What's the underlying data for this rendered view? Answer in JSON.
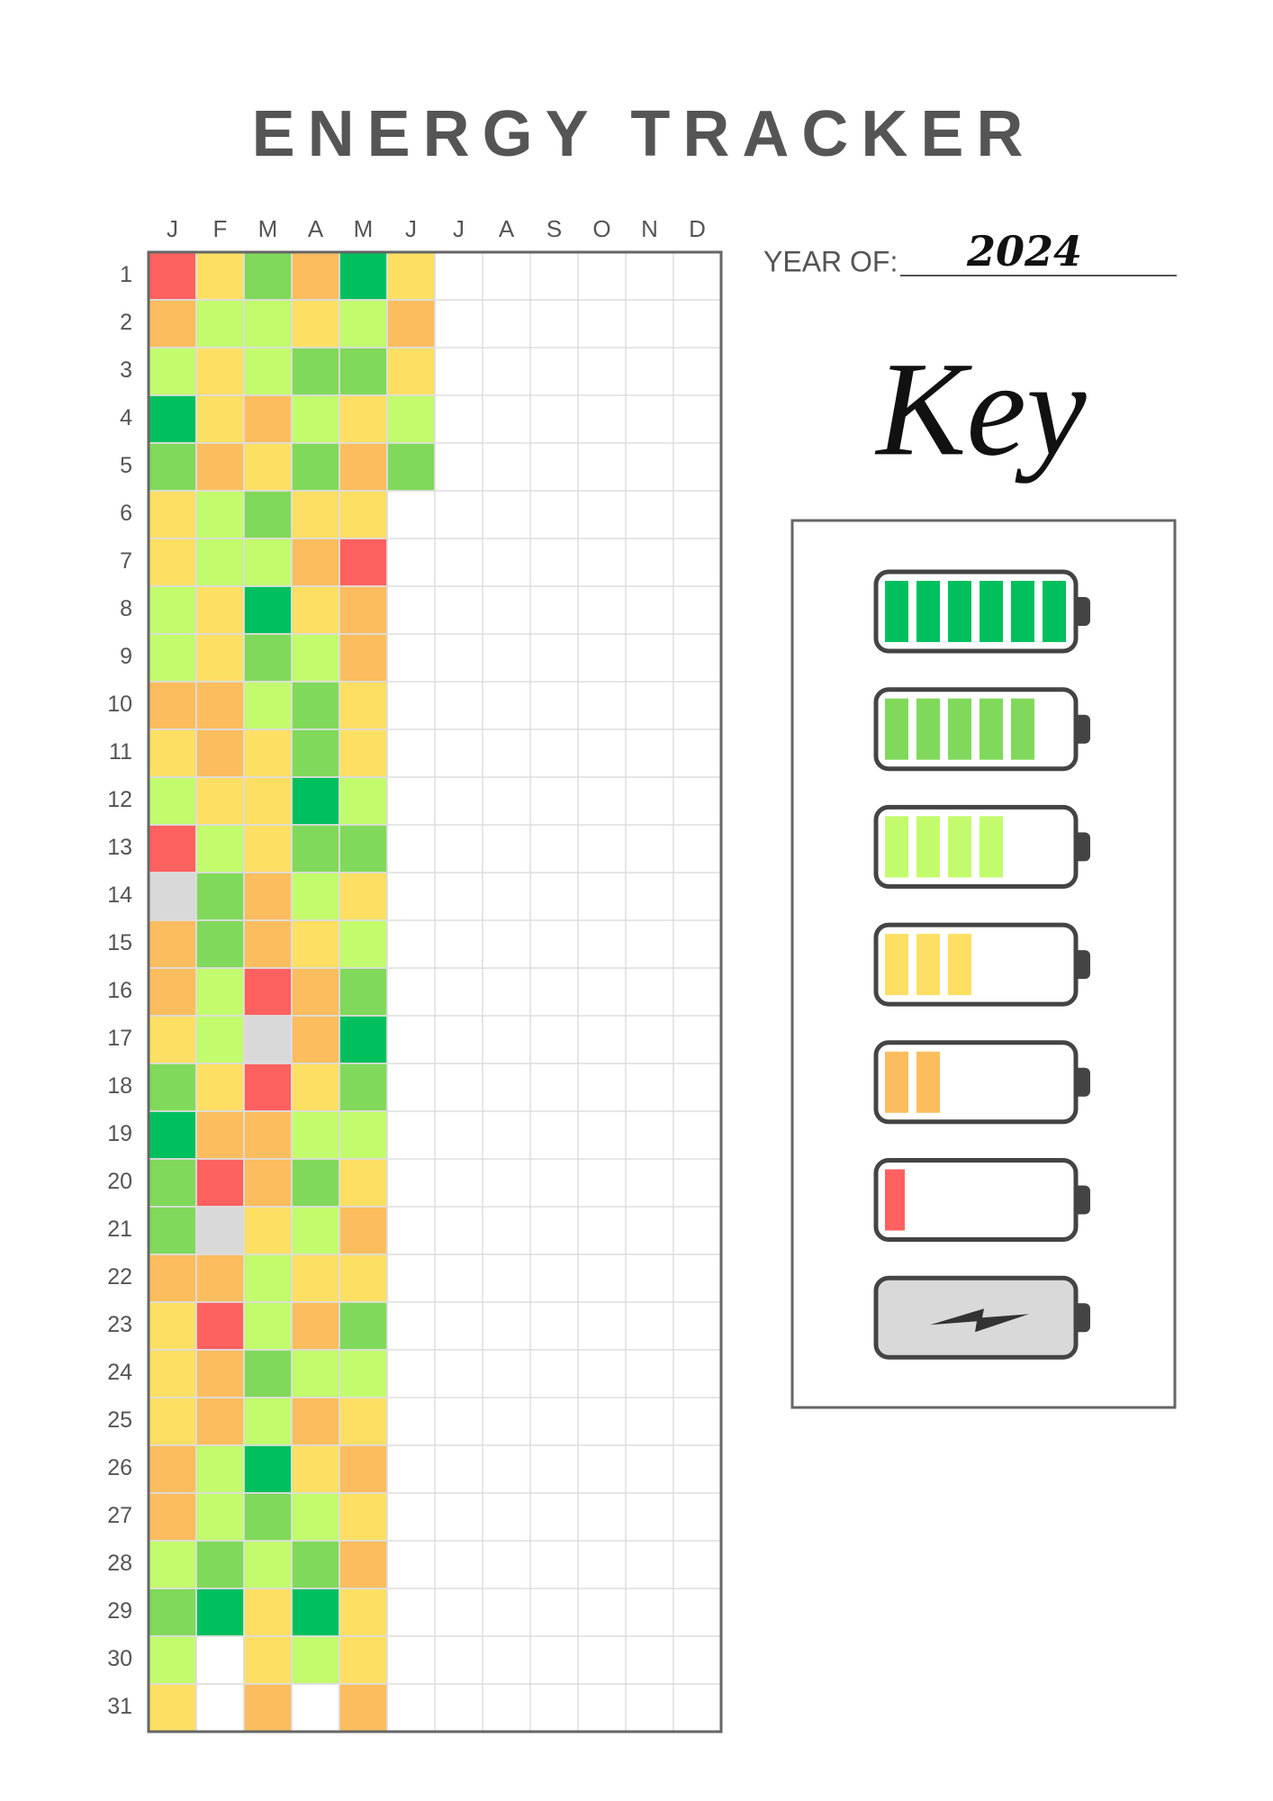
{
  "header": {
    "title": "ENERGY TRACKER",
    "year_label": "YEAR OF:",
    "year": "2024",
    "key_title": "Key"
  },
  "days": [
    1,
    2,
    3,
    4,
    5,
    6,
    7,
    8,
    9,
    10,
    11,
    12,
    13,
    14,
    15,
    16,
    17,
    18,
    19,
    20,
    21,
    22,
    23,
    24,
    25,
    26,
    27,
    28,
    29,
    30,
    31
  ],
  "months": [
    {
      "label": "J",
      "cells": [
        "#ff6060",
        "#fbbd5e",
        "#c2fb6c",
        "#00c05e",
        "#80d95a",
        "#fddf63",
        "#fddf63",
        "#c2fb6c",
        "#c2fb6c",
        "#fbbd5e",
        "#fddf63",
        "#c2fb6c",
        "#ff6060",
        "#d9d9d9",
        "#fbbd5e",
        "#fbbd5e",
        "#fddf63",
        "#80d95a",
        "#00c05e",
        "#80d95a",
        "#80d95a",
        "#fbbd5e",
        "#fddf63",
        "#fddf63",
        "#fddf63",
        "#fbbd5e",
        "#fbbd5e",
        "#c2fb6c",
        "#80d95a",
        "#c2fb6c",
        "#fddf63"
      ]
    },
    {
      "label": "F",
      "cells": [
        "#fddf63",
        "#c2fb6c",
        "#fddf63",
        "#fddf63",
        "#fbbd5e",
        "#c2fb6c",
        "#c2fb6c",
        "#fddf63",
        "#fddf63",
        "#fbbd5e",
        "#fbbd5e",
        "#fddf63",
        "#c2fb6c",
        "#80d95a",
        "#80d95a",
        "#c2fb6c",
        "#c2fb6c",
        "#fddf63",
        "#fbbd5e",
        "#ff6060",
        "#d9d9d9",
        "#fbbd5e",
        "#ff6060",
        "#fbbd5e",
        "#fbbd5e",
        "#c2fb6c",
        "#c2fb6c",
        "#80d95a",
        "#00c05e",
        null,
        null
      ]
    },
    {
      "label": "M",
      "cells": [
        "#80d95a",
        "#c2fb6c",
        "#c2fb6c",
        "#fbbd5e",
        "#fddf63",
        "#80d95a",
        "#c2fb6c",
        "#00c05e",
        "#80d95a",
        "#c2fb6c",
        "#fddf63",
        "#fddf63",
        "#fddf63",
        "#fbbd5e",
        "#fbbd5e",
        "#ff6060",
        "#d9d9d9",
        "#ff6060",
        "#fbbd5e",
        "#fbbd5e",
        "#fddf63",
        "#c2fb6c",
        "#c2fb6c",
        "#80d95a",
        "#c2fb6c",
        "#00c05e",
        "#80d95a",
        "#c2fb6c",
        "#fddf63",
        "#fddf63",
        "#fbbd5e"
      ]
    },
    {
      "label": "A",
      "cells": [
        "#fbbd5e",
        "#fddf63",
        "#80d95a",
        "#c2fb6c",
        "#80d95a",
        "#fddf63",
        "#fbbd5e",
        "#fddf63",
        "#c2fb6c",
        "#80d95a",
        "#80d95a",
        "#00c05e",
        "#80d95a",
        "#c2fb6c",
        "#fddf63",
        "#fbbd5e",
        "#fbbd5e",
        "#fddf63",
        "#c2fb6c",
        "#80d95a",
        "#c2fb6c",
        "#fddf63",
        "#fbbd5e",
        "#c2fb6c",
        "#fbbd5e",
        "#fddf63",
        "#c2fb6c",
        "#80d95a",
        "#00c05e",
        "#c2fb6c",
        null
      ]
    },
    {
      "label": "M",
      "cells": [
        "#00c05e",
        "#c2fb6c",
        "#80d95a",
        "#fddf63",
        "#fbbd5e",
        "#fddf63",
        "#ff6060",
        "#fbbd5e",
        "#fbbd5e",
        "#fddf63",
        "#fddf63",
        "#c2fb6c",
        "#80d95a",
        "#fddf63",
        "#c2fb6c",
        "#80d95a",
        "#00c05e",
        "#80d95a",
        "#c2fb6c",
        "#fddf63",
        "#fbbd5e",
        "#fddf63",
        "#80d95a",
        "#c2fb6c",
        "#fddf63",
        "#fbbd5e",
        "#fddf63",
        "#fbbd5e",
        "#fddf63",
        "#fddf63",
        "#fbbd5e"
      ]
    },
    {
      "label": "J",
      "cells": [
        "#fddf63",
        "#fbbd5e",
        "#fddf63",
        "#c2fb6c",
        "#80d95a"
      ]
    },
    {
      "label": "J",
      "cells": []
    },
    {
      "label": "A",
      "cells": []
    },
    {
      "label": "S",
      "cells": []
    },
    {
      "label": "O",
      "cells": []
    },
    {
      "label": "N",
      "cells": []
    },
    {
      "label": "D",
      "cells": []
    }
  ]
}
